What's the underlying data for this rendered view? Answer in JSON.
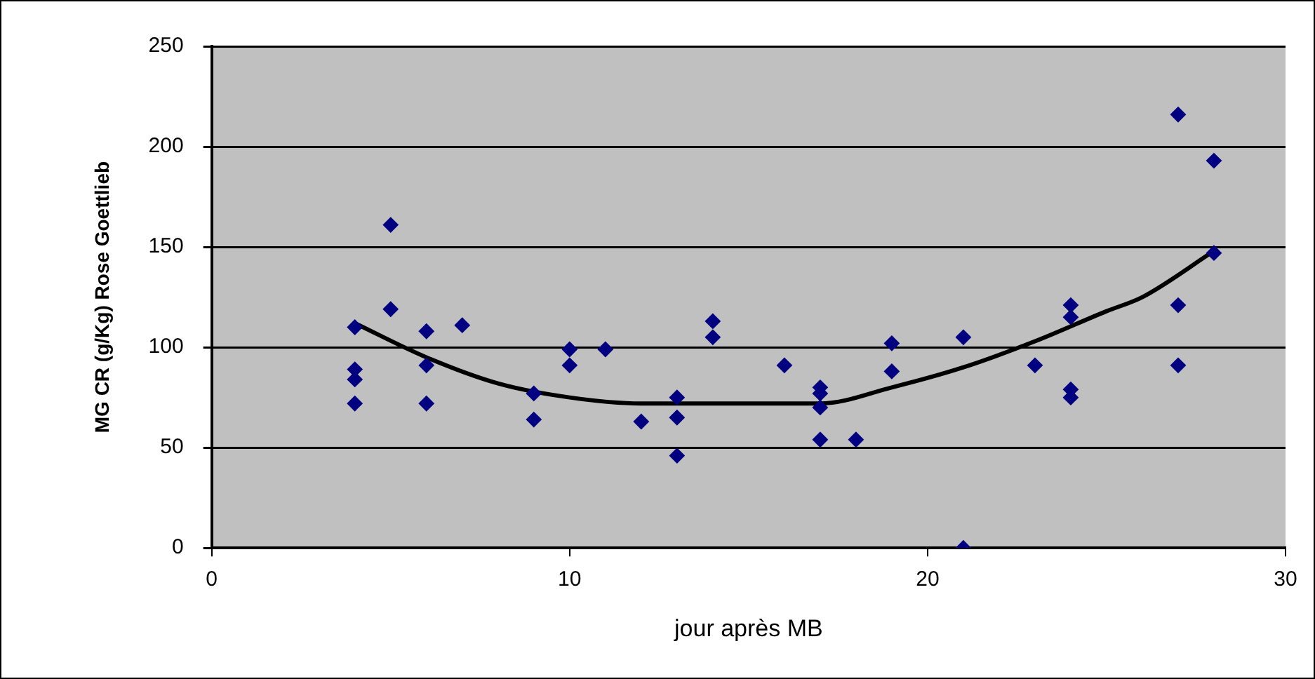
{
  "chart_data": {
    "type": "scatter",
    "xlabel": "jour après MB",
    "ylabel": "MG CR (g/Kg) Rose Goettlieb",
    "xlim": [
      0,
      30
    ],
    "xticks": [
      0,
      10,
      20,
      30
    ],
    "ylim": [
      0,
      250
    ],
    "yticks": [
      0,
      50,
      100,
      150,
      200,
      250
    ],
    "grid": "y",
    "legend": false,
    "marker": "diamond",
    "series": [
      {
        "color": "#000080",
        "x": [
          4,
          4,
          4,
          4,
          5,
          5,
          6,
          6,
          6,
          7,
          9,
          9,
          10,
          10,
          11,
          12,
          13,
          13,
          13,
          14,
          14,
          16,
          17,
          17,
          17,
          17,
          18,
          19,
          19,
          21,
          21,
          23,
          24,
          24,
          24,
          24,
          27,
          27,
          27,
          28,
          28
        ],
        "values": [
          110,
          89,
          84,
          72,
          161,
          119,
          108,
          91,
          72,
          111,
          77,
          64,
          99,
          91,
          99,
          63,
          75,
          65,
          46,
          113,
          105,
          91,
          80,
          77,
          70,
          54,
          54,
          102,
          88,
          105,
          0,
          91,
          121,
          115,
          79,
          75,
          216,
          121,
          91,
          193,
          147
        ]
      },
      {
        "type": "line",
        "color": "#000000",
        "marker": "none",
        "x": [
          4,
          6,
          8,
          10,
          12,
          14,
          17,
          19,
          21,
          23,
          25,
          26,
          28
        ],
        "values": [
          112,
          95,
          82,
          75,
          72,
          72,
          72,
          80,
          90,
          103,
          118,
          125,
          148
        ]
      }
    ]
  }
}
